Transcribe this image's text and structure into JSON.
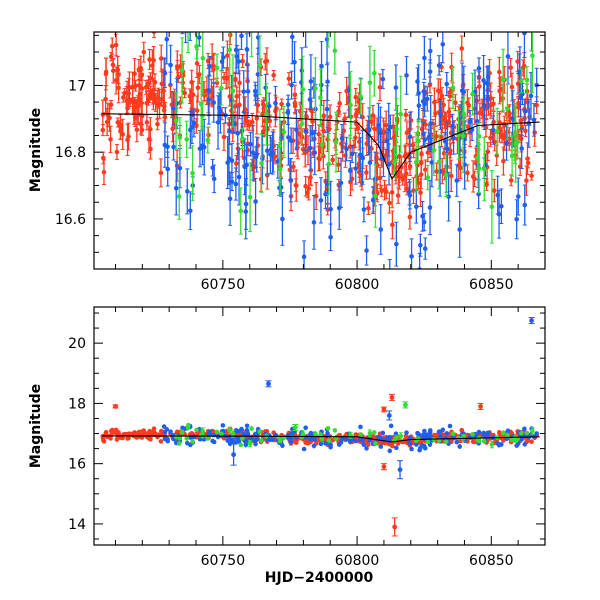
{
  "chart_data": [
    {
      "type": "scatter",
      "panel": "top",
      "xlabel": "",
      "ylabel": "Magnitude",
      "xlim": [
        60702,
        60870
      ],
      "ylim": [
        17.16,
        16.45
      ],
      "inverted_y": true,
      "grid": false,
      "x_ticks": [
        60750,
        60800,
        60850
      ],
      "x_tick_labels": [
        "60750",
        "60800",
        "60850"
      ],
      "y_ticks": [
        16.6,
        16.8,
        17.0
      ],
      "y_tick_labels": [
        "16.6",
        "16.8",
        "17"
      ],
      "model_line": {
        "x": [
          60705,
          60760,
          60800,
          60808,
          60813,
          60820,
          60845,
          60868
        ],
        "y": [
          16.915,
          16.91,
          16.89,
          16.82,
          16.72,
          16.8,
          16.88,
          16.89
        ]
      },
      "series": [
        {
          "color": "#ff3a1f",
          "density": "high"
        },
        {
          "color": "#1f5ff0",
          "density": "medium"
        },
        {
          "color": "#33dd33",
          "density": "low"
        }
      ]
    },
    {
      "type": "scatter",
      "panel": "bottom",
      "xlabel": "HJD−2400000",
      "ylabel": "Magnitude",
      "xlim": [
        60702,
        60870
      ],
      "ylim": [
        21.2,
        13.3
      ],
      "inverted_y": true,
      "grid": false,
      "x_ticks": [
        60750,
        60800,
        60850
      ],
      "x_tick_labels": [
        "60750",
        "60800",
        "60850"
      ],
      "y_ticks": [
        14,
        16,
        18,
        20
      ],
      "y_tick_labels": [
        "14",
        "16",
        "18",
        "20"
      ],
      "model_line": {
        "x": [
          60705,
          60760,
          60800,
          60813,
          60820,
          60868
        ],
        "y": [
          16.92,
          16.91,
          16.89,
          16.72,
          16.8,
          16.89
        ]
      },
      "outliers": [
        {
          "x": 60814,
          "y": 13.9,
          "err": 0.3,
          "color": "#ff3a1f"
        },
        {
          "x": 60813,
          "y": 18.2,
          "err": 0.1,
          "color": "#ff3a1f"
        },
        {
          "x": 60810,
          "y": 17.8,
          "err": 0.08,
          "color": "#ff3a1f"
        },
        {
          "x": 60810,
          "y": 15.9,
          "err": 0.1,
          "color": "#ff3a1f"
        },
        {
          "x": 60767,
          "y": 18.65,
          "err": 0.1,
          "color": "#1f5ff0"
        },
        {
          "x": 60754,
          "y": 16.3,
          "err": 0.35,
          "color": "#1f5ff0"
        },
        {
          "x": 60865,
          "y": 20.75,
          "err": 0.1,
          "color": "#1f5ff0"
        },
        {
          "x": 60812,
          "y": 17.6,
          "err": 0.15,
          "color": "#1f5ff0"
        },
        {
          "x": 60816,
          "y": 15.8,
          "err": 0.3,
          "color": "#1f5ff0"
        },
        {
          "x": 60818,
          "y": 17.95,
          "err": 0.1,
          "color": "#33dd33"
        },
        {
          "x": 60777,
          "y": 17.2,
          "err": 0.1,
          "color": "#33dd33"
        },
        {
          "x": 60846,
          "y": 17.9,
          "err": 0.1,
          "color": "#ff3a1f"
        },
        {
          "x": 60710,
          "y": 17.9,
          "err": 0.05,
          "color": "#ff3a1f"
        }
      ]
    }
  ]
}
